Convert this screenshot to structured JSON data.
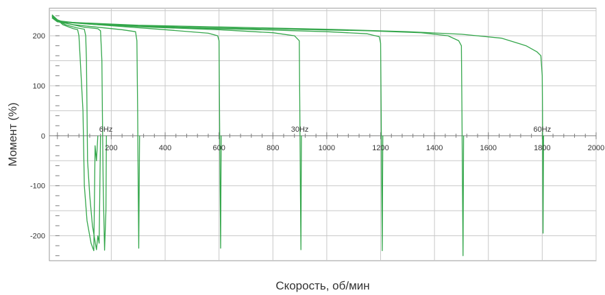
{
  "chart_data": {
    "type": "line",
    "xlabel": "Скорость, об/мин",
    "ylabel": "Момент  (%)",
    "xlim": [
      -30,
      2000
    ],
    "ylim": [
      -250,
      255
    ],
    "x_ticks": [
      200,
      400,
      600,
      800,
      1000,
      1200,
      1400,
      1600,
      1800,
      2000
    ],
    "y_ticks": [
      -200,
      -100,
      0,
      100,
      200
    ],
    "x_tick_labels": [
      "200",
      "400",
      "600",
      "800",
      "1000",
      "1200",
      "1400",
      "1600",
      "1800",
      "2000"
    ],
    "y_tick_labels": [
      "-200",
      "-100",
      "0",
      "100",
      "200"
    ],
    "grid": true,
    "series_color": "#33a64a",
    "annotations": [
      {
        "text": "6Hz",
        "x": 180,
        "y": 8
      },
      {
        "text": "30Hz",
        "x": 900,
        "y": 8
      },
      {
        "text": "60Hz",
        "x": 1800,
        "y": 8
      }
    ],
    "series": [
      {
        "values": [
          [
            -20,
            240
          ],
          [
            0,
            232
          ],
          [
            20,
            222
          ],
          [
            40,
            218
          ],
          [
            60,
            214
          ],
          [
            75,
            212
          ],
          [
            80,
            200
          ],
          [
            85,
            150
          ],
          [
            95,
            50
          ],
          [
            100,
            -100
          ],
          [
            110,
            -170
          ],
          [
            125,
            -215
          ],
          [
            135,
            -230
          ],
          [
            140,
            -20
          ],
          [
            145,
            -50
          ],
          [
            150,
            0
          ]
        ]
      },
      {
        "values": [
          [
            -20,
            240
          ],
          [
            0,
            230
          ],
          [
            30,
            222
          ],
          [
            70,
            216
          ],
          [
            100,
            213
          ],
          [
            105,
            200
          ],
          [
            108,
            150
          ],
          [
            110,
            50
          ],
          [
            112,
            -50
          ],
          [
            120,
            -120
          ],
          [
            130,
            -180
          ],
          [
            145,
            -228
          ],
          [
            150,
            -200
          ],
          [
            155,
            -215
          ],
          [
            160,
            0
          ]
        ]
      },
      {
        "values": [
          [
            -20,
            242
          ],
          [
            0,
            232
          ],
          [
            40,
            224
          ],
          [
            100,
            217
          ],
          [
            150,
            214
          ],
          [
            160,
            210
          ],
          [
            165,
            150
          ],
          [
            168,
            0
          ],
          [
            170,
            -100
          ],
          [
            175,
            -229
          ],
          [
            180,
            -150
          ],
          [
            182,
            0
          ]
        ]
      },
      {
        "values": [
          [
            -20,
            240
          ],
          [
            0,
            228
          ],
          [
            60,
            222
          ],
          [
            150,
            217
          ],
          [
            240,
            212
          ],
          [
            290,
            208
          ],
          [
            295,
            190
          ],
          [
            298,
            50
          ],
          [
            300,
            -100
          ],
          [
            302,
            -225
          ],
          [
            305,
            0
          ]
        ]
      },
      {
        "values": [
          [
            -20,
            238
          ],
          [
            0,
            230
          ],
          [
            100,
            224
          ],
          [
            250,
            218
          ],
          [
            400,
            212
          ],
          [
            560,
            205
          ],
          [
            595,
            200
          ],
          [
            600,
            190
          ],
          [
            602,
            50
          ],
          [
            604,
            -100
          ],
          [
            606,
            -225
          ],
          [
            608,
            0
          ]
        ]
      },
      {
        "values": [
          [
            -20,
            236
          ],
          [
            0,
            228
          ],
          [
            150,
            222
          ],
          [
            350,
            217
          ],
          [
            600,
            212
          ],
          [
            800,
            206
          ],
          [
            880,
            200
          ],
          [
            898,
            190
          ],
          [
            900,
            50
          ],
          [
            902,
            -100
          ],
          [
            904,
            -228
          ],
          [
            906,
            0
          ]
        ]
      },
      {
        "values": [
          [
            -20,
            236
          ],
          [
            0,
            228
          ],
          [
            200,
            222
          ],
          [
            450,
            216
          ],
          [
            750,
            212
          ],
          [
            1000,
            208
          ],
          [
            1150,
            204
          ],
          [
            1195,
            198
          ],
          [
            1200,
            185
          ],
          [
            1202,
            50
          ],
          [
            1204,
            -100
          ],
          [
            1206,
            -230
          ],
          [
            1208,
            0
          ]
        ]
      },
      {
        "values": [
          [
            -20,
            236
          ],
          [
            0,
            228
          ],
          [
            250,
            221
          ],
          [
            550,
            216
          ],
          [
            850,
            213
          ],
          [
            1150,
            210
          ],
          [
            1350,
            206
          ],
          [
            1450,
            200
          ],
          [
            1490,
            190
          ],
          [
            1500,
            180
          ],
          [
            1502,
            50
          ],
          [
            1504,
            -100
          ],
          [
            1506,
            -240
          ],
          [
            1508,
            0
          ]
        ]
      },
      {
        "values": [
          [
            -20,
            236
          ],
          [
            0,
            228
          ],
          [
            300,
            221
          ],
          [
            650,
            217
          ],
          [
            1000,
            213
          ],
          [
            1300,
            208
          ],
          [
            1500,
            203
          ],
          [
            1650,
            195
          ],
          [
            1740,
            180
          ],
          [
            1780,
            168
          ],
          [
            1795,
            160
          ],
          [
            1800,
            120
          ],
          [
            1801,
            50
          ],
          [
            1802,
            -100
          ],
          [
            1803,
            -195
          ],
          [
            1805,
            0
          ]
        ]
      }
    ]
  }
}
